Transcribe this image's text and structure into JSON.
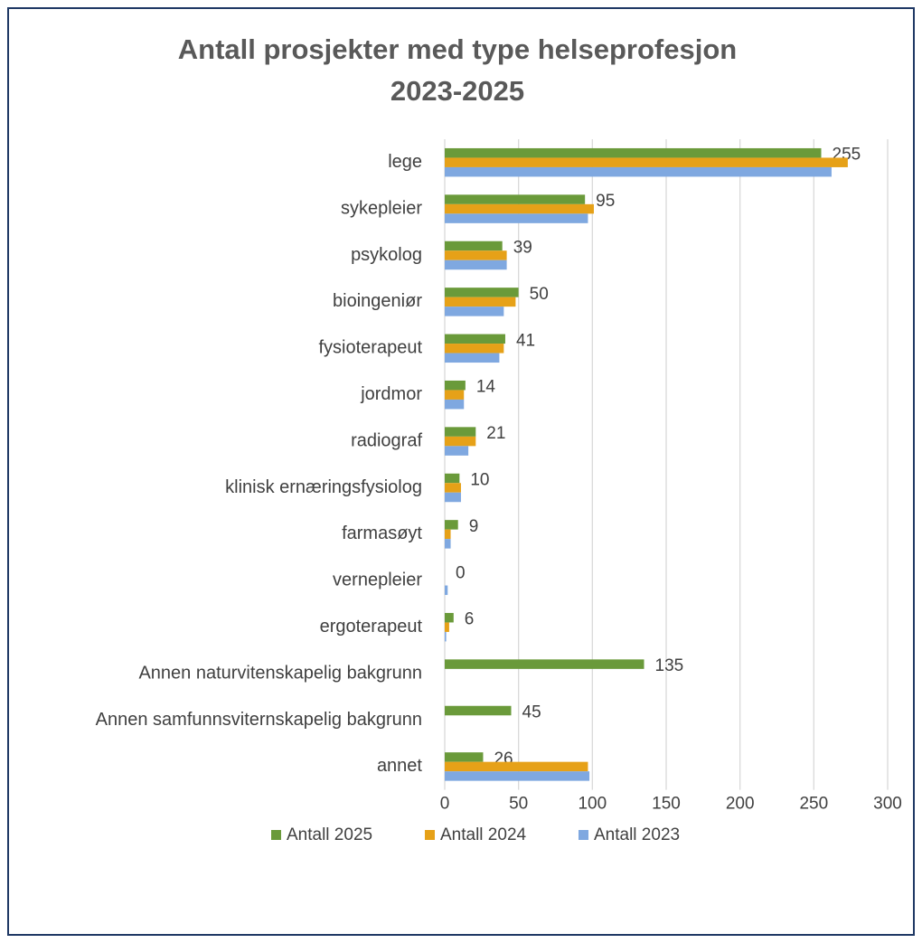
{
  "chart_data": {
    "type": "barh",
    "title": [
      "Antall prosjekter med type helseprofesjon",
      "2023-2025"
    ],
    "categories": [
      "lege",
      "sykepleier",
      "psykolog",
      "bioingeniør",
      "fysioterapeut",
      "jordmor",
      "radiograf",
      "klinisk ernæringsfysiolog",
      "farmasøyt",
      "vernepleier",
      "ergoterapeut",
      "Annen naturvitenskapelig bakgrunn",
      "Annen samfunnsviternskapelig bakgrunn",
      "annet"
    ],
    "series": [
      {
        "name": "Antall 2025",
        "color": "#6a9a3a",
        "values": [
          255,
          95,
          39,
          50,
          41,
          14,
          21,
          10,
          9,
          0,
          6,
          135,
          45,
          26
        ],
        "labels": true
      },
      {
        "name": "Antall 2024",
        "color": "#e6a118",
        "values": [
          273,
          101,
          42,
          48,
          40,
          13,
          21,
          11,
          4,
          0,
          3,
          0,
          0,
          97
        ]
      },
      {
        "name": "Antall 2023",
        "color": "#7fa8e0",
        "values": [
          262,
          97,
          42,
          40,
          37,
          13,
          16,
          11,
          4,
          2,
          1,
          0,
          0,
          98
        ]
      }
    ],
    "xlim": [
      0,
      300
    ],
    "xticks": [
      0,
      50,
      100,
      150,
      200,
      250,
      300
    ],
    "grid": true,
    "legend": "bottom"
  }
}
